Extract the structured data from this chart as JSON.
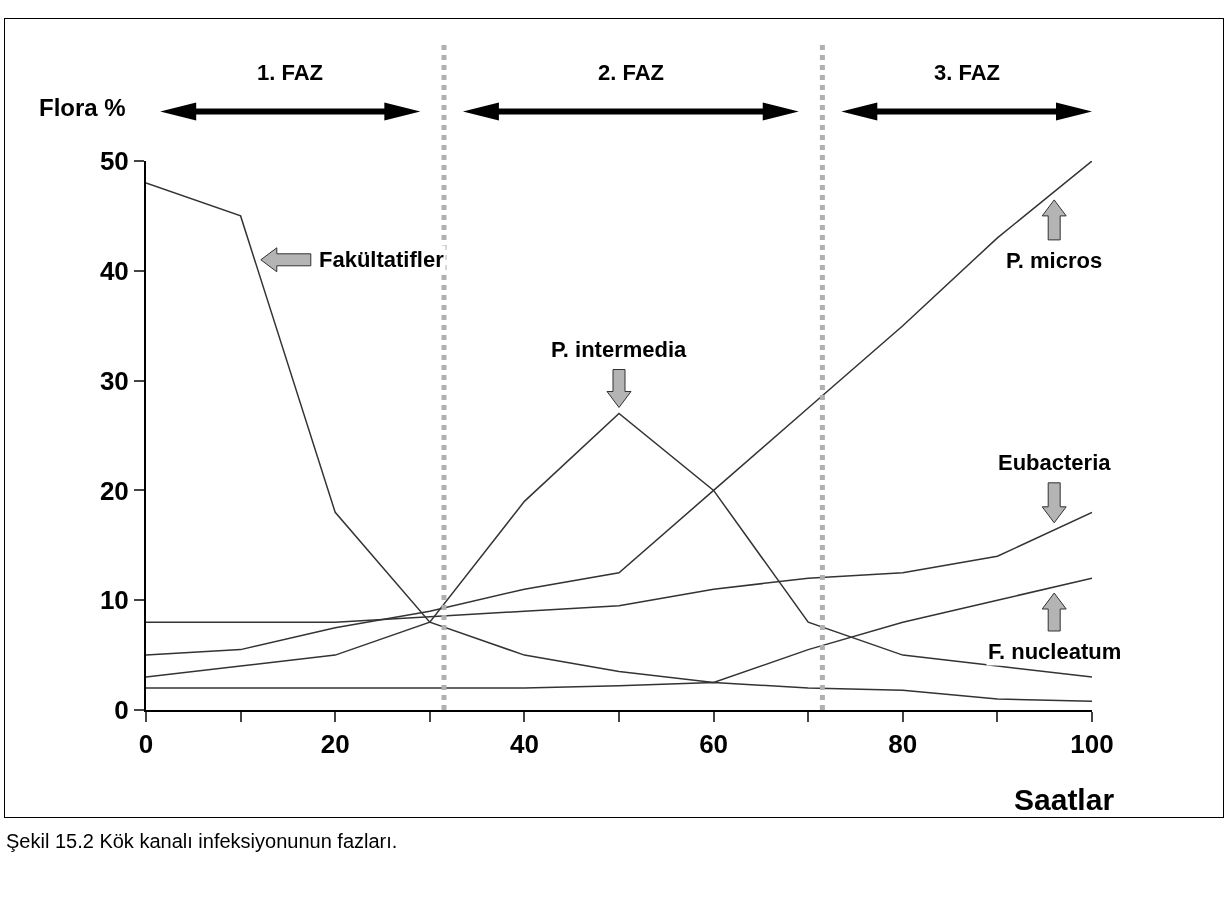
{
  "chart_data": {
    "type": "line",
    "xlabel": "Saatlar",
    "ylabel": "Flora %",
    "x": [
      0,
      10,
      20,
      30,
      40,
      50,
      60,
      70,
      80,
      90,
      100
    ],
    "series": [
      {
        "color": "#333333",
        "values": [
          48,
          45,
          18,
          8,
          5,
          3.5,
          2.5,
          5.5,
          8,
          10,
          12
        ]
      },
      {
        "color": "#333333",
        "values": [
          8,
          8,
          8,
          8.5,
          9,
          9.5,
          11,
          12,
          12.5,
          14,
          18
        ]
      },
      {
        "color": "#333333",
        "values": [
          5,
          5.5,
          7.5,
          9,
          11,
          12.5,
          20,
          27.5,
          35,
          43,
          50
        ]
      },
      {
        "color": "#333333",
        "values": [
          3,
          4,
          5,
          8,
          19,
          27,
          20,
          8,
          5,
          4,
          3
        ]
      },
      {
        "color": "#333333",
        "values": [
          2,
          2,
          2,
          2,
          2,
          2.2,
          2.5,
          2,
          1.8,
          1,
          0.8
        ]
      }
    ],
    "xlim": [
      0,
      100
    ],
    "ylim": [
      0,
      50
    ],
    "xticks": [
      0,
      {
        "value": 10,
        "label": null
      },
      20,
      {
        "value": 30,
        "label": null
      },
      40,
      {
        "value": 50,
        "label": null
      },
      60,
      {
        "value": 70,
        "label": null
      },
      80,
      {
        "value": 90,
        "label": null
      },
      100
    ],
    "yticks": [
      0,
      10,
      20,
      30,
      40,
      50
    ],
    "grid": false,
    "marker": "none",
    "line_style": "solid",
    "ref_lines": [
      {
        "axis": "x",
        "value": 31.5,
        "label": null,
        "color": "#b0b0b0",
        "line_style": "dotted"
      },
      {
        "axis": "x",
        "value": 71.5,
        "label": null,
        "color": "#b0b0b0",
        "line_style": "dotted"
      }
    ],
    "annotations": [
      {
        "text": "Fakültatifler",
        "x": 11.5,
        "y": 41
      },
      {
        "text": "P. intermedia",
        "x": 50,
        "y": 27
      },
      {
        "text": "P. micros",
        "x": 96,
        "y": 47
      },
      {
        "text": "Eubacteria",
        "x": 96,
        "y": 16.5
      },
      {
        "text": "F. nucleatum",
        "x": 96,
        "y": 11.2
      },
      "1. FAZ",
      "2. FAZ",
      "3. FAZ",
      "Şekil 15.2 Kök kanalı infeksiyonunun fazları."
    ]
  }
}
